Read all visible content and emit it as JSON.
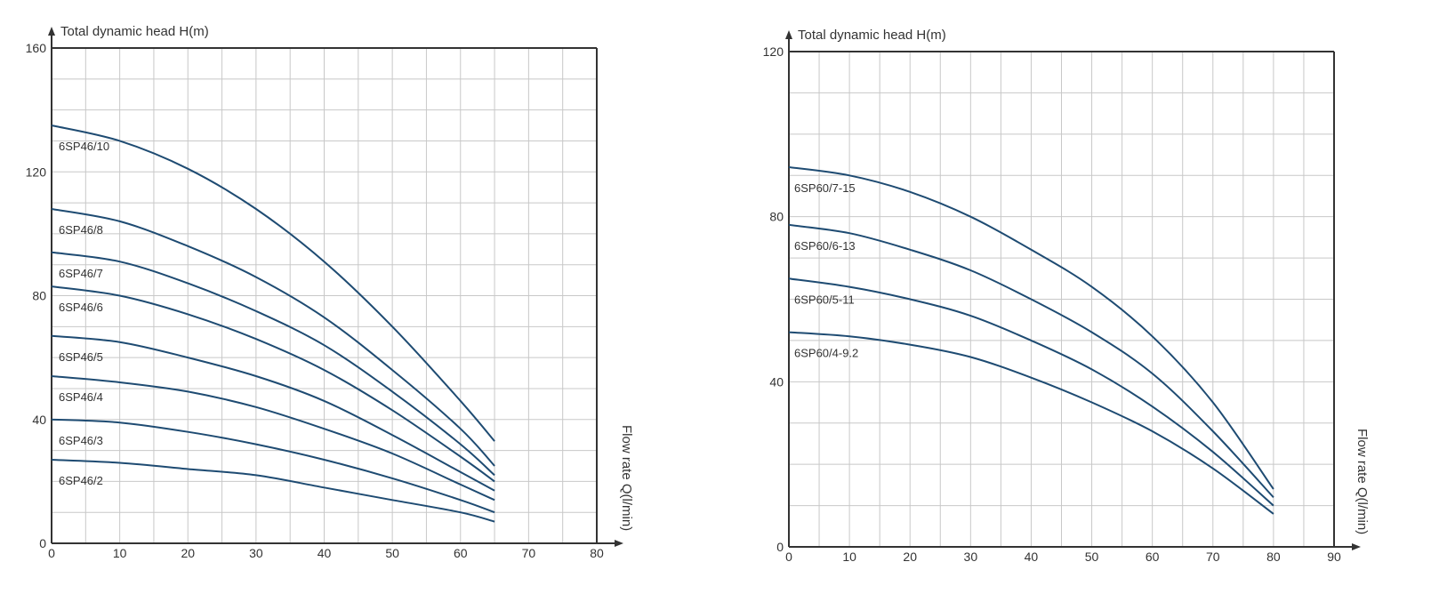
{
  "colors": {
    "curve": "#1e4b72",
    "axis": "#333333",
    "grid": "#c8c8c8"
  },
  "chart_data": [
    {
      "type": "line",
      "title": "",
      "ylabel": "Total dynamic head H(m)",
      "xlabel": "Flow rate Q(l/min)",
      "xlim": [
        0,
        80
      ],
      "ylim": [
        0,
        160
      ],
      "xticks": [
        0,
        10,
        20,
        30,
        40,
        50,
        60,
        70,
        80
      ],
      "yticks": [
        0,
        40,
        80,
        120,
        160
      ],
      "grid": true,
      "series": [
        {
          "name": "6SP46/10",
          "x": [
            0,
            10,
            20,
            30,
            40,
            50,
            60,
            65
          ],
          "y": [
            135,
            130,
            121,
            108,
            91,
            70,
            46,
            33
          ]
        },
        {
          "name": "6SP46/8",
          "x": [
            0,
            10,
            20,
            30,
            40,
            50,
            60,
            65
          ],
          "y": [
            108,
            104,
            96,
            86,
            73,
            56,
            37,
            25
          ]
        },
        {
          "name": "6SP46/7",
          "x": [
            0,
            10,
            20,
            30,
            40,
            50,
            60,
            65
          ],
          "y": [
            94,
            91,
            84,
            75,
            64,
            49,
            32,
            22
          ]
        },
        {
          "name": "6SP46/6",
          "x": [
            0,
            10,
            20,
            30,
            40,
            50,
            60,
            65
          ],
          "y": [
            83,
            80,
            74,
            66,
            56,
            43,
            28,
            20
          ]
        },
        {
          "name": "6SP46/5",
          "x": [
            0,
            10,
            20,
            30,
            40,
            50,
            60,
            65
          ],
          "y": [
            67,
            65,
            60,
            54,
            46,
            35,
            23,
            17
          ]
        },
        {
          "name": "6SP46/4",
          "x": [
            0,
            10,
            20,
            30,
            40,
            50,
            60,
            65
          ],
          "y": [
            54,
            52,
            49,
            44,
            37,
            29,
            19,
            14
          ]
        },
        {
          "name": "6SP46/3",
          "x": [
            0,
            10,
            20,
            30,
            40,
            50,
            60,
            65
          ],
          "y": [
            40,
            39,
            36,
            32,
            27,
            21,
            14,
            10
          ]
        },
        {
          "name": "6SP46/2",
          "x": [
            0,
            10,
            20,
            30,
            40,
            50,
            60,
            65
          ],
          "y": [
            27,
            26,
            24,
            22,
            18,
            14,
            10,
            7
          ]
        }
      ]
    },
    {
      "type": "line",
      "title": "",
      "ylabel": "Total dynamic head H(m)",
      "xlabel": "Flow rate Q(l/min)",
      "xlim": [
        0,
        90
      ],
      "ylim": [
        0,
        120
      ],
      "xticks": [
        0,
        10,
        20,
        30,
        40,
        50,
        60,
        70,
        80,
        90
      ],
      "yticks": [
        0,
        40,
        80,
        120
      ],
      "grid": true,
      "series": [
        {
          "name": "6SP60/7-15",
          "x": [
            0,
            10,
            20,
            30,
            40,
            50,
            60,
            70,
            80
          ],
          "y": [
            92,
            90,
            86,
            80,
            72,
            63,
            51,
            35,
            14
          ]
        },
        {
          "name": "6SP60/6-13",
          "x": [
            0,
            10,
            20,
            30,
            40,
            50,
            60,
            70,
            80
          ],
          "y": [
            78,
            76,
            72,
            67,
            60,
            52,
            42,
            28,
            12
          ]
        },
        {
          "name": "6SP60/5-11",
          "x": [
            0,
            10,
            20,
            30,
            40,
            50,
            60,
            70,
            80
          ],
          "y": [
            65,
            63,
            60,
            56,
            50,
            43,
            34,
            23,
            10
          ]
        },
        {
          "name": "6SP60/4-9.2",
          "x": [
            0,
            10,
            20,
            30,
            40,
            50,
            60,
            70,
            80
          ],
          "y": [
            52,
            51,
            49,
            46,
            41,
            35,
            28,
            19,
            8
          ]
        }
      ]
    }
  ]
}
